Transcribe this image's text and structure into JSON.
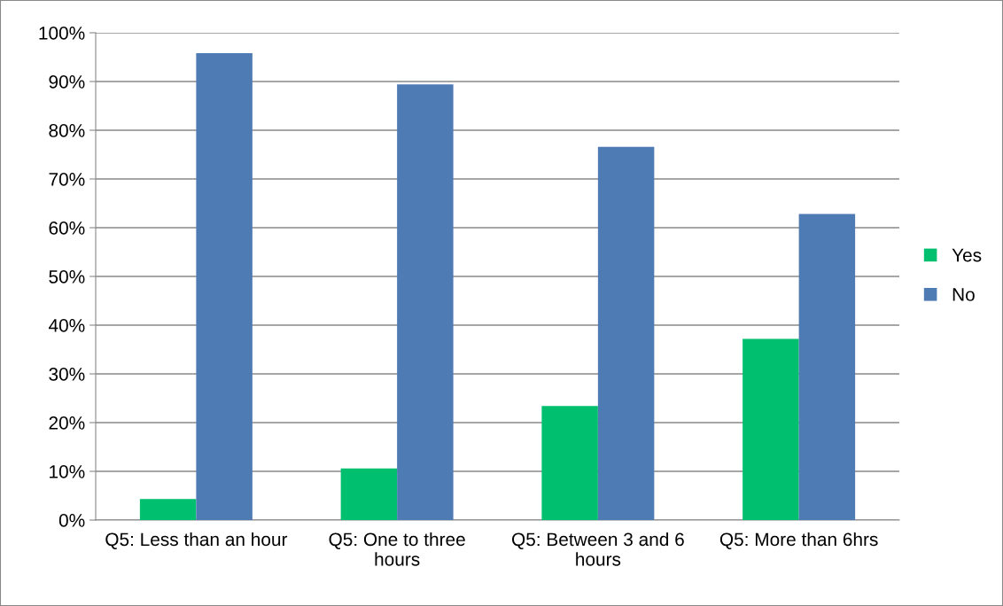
{
  "chart_data": {
    "type": "bar",
    "categories": [
      "Q5: Less than an hour",
      "Q5: One to three hours",
      "Q5: Between 3 and 6 hours",
      "Q5: More than 6hrs"
    ],
    "series": [
      {
        "name": "Yes",
        "color": "#00bf6f",
        "values": [
          4.3,
          10.6,
          23.4,
          37.2
        ]
      },
      {
        "name": "No",
        "color": "#4f7bb5",
        "values": [
          95.8,
          89.4,
          76.6,
          62.8
        ]
      }
    ],
    "ylim": [
      0,
      100
    ],
    "yticks": [
      {
        "value": 0,
        "label": "0%"
      },
      {
        "value": 10,
        "label": "10%"
      },
      {
        "value": 20,
        "label": "20%"
      },
      {
        "value": 30,
        "label": "30%"
      },
      {
        "value": 40,
        "label": "40%"
      },
      {
        "value": 50,
        "label": "50%"
      },
      {
        "value": 60,
        "label": "60%"
      },
      {
        "value": 70,
        "label": "70%"
      },
      {
        "value": 80,
        "label": "80%"
      },
      {
        "value": 90,
        "label": "90%"
      },
      {
        "value": 100,
        "label": "100%"
      }
    ],
    "grid": "y",
    "legend": "right"
  }
}
